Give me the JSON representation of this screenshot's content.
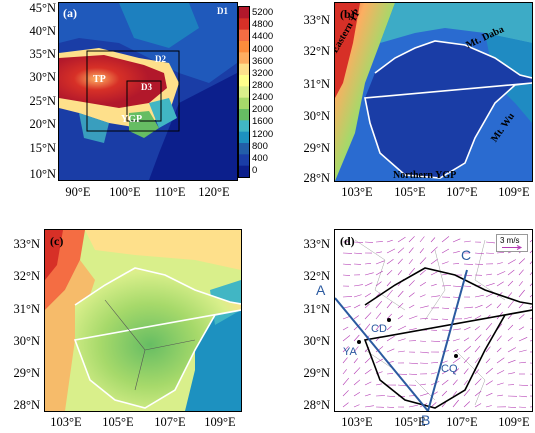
{
  "panel_a": {
    "label": "(a)",
    "domain_tag": "D1",
    "boxes": [
      "D2",
      "D3"
    ],
    "regions": [
      "TP",
      "YGP"
    ],
    "lat_ticks": [
      "45°N",
      "40°N",
      "35°N",
      "30°N",
      "25°N",
      "20°N",
      "15°N",
      "10°N"
    ],
    "lon_ticks": [
      "90°E",
      "100°E",
      "110°E",
      "120°E"
    ],
    "colorbar": {
      "ticks": [
        "5200",
        "4800",
        "4400",
        "4000",
        "3600",
        "3200",
        "2800",
        "2400",
        "2000",
        "1600",
        "1200",
        "800",
        "400",
        "0"
      ],
      "colors": [
        "#b2182b",
        "#d73027",
        "#f46d43",
        "#fd8d3c",
        "#fdae61",
        "#fee08b",
        "#ffff8c",
        "#d9ef8b",
        "#a6d96a",
        "#66bd63",
        "#41b6c4",
        "#1d91c0",
        "#225ea8",
        "#1a3da6",
        "#0c1f8c"
      ]
    }
  },
  "panel_b": {
    "label": "(b)",
    "annotations": [
      "Eastern TP",
      "Mt. Daba",
      "Mt. Wu",
      "Northern YGP"
    ],
    "lat_ticks": [
      "33°N",
      "32°N",
      "31°N",
      "30°N",
      "29°N",
      "28°N"
    ],
    "lon_ticks": [
      "103°E",
      "105°E",
      "107°E",
      "109°E"
    ]
  },
  "panel_c": {
    "label": "(c)",
    "lat_ticks": [
      "33°N",
      "32°N",
      "31°N",
      "30°N",
      "29°N",
      "28°N"
    ],
    "lon_ticks": [
      "103°E",
      "105°E",
      "107°E",
      "109°E"
    ]
  },
  "panel_d": {
    "label": "(d)",
    "wind_scale": "3 m/s",
    "section_points": [
      "A",
      "B",
      "C"
    ],
    "stations": [
      "CD",
      "YA",
      "CQ"
    ],
    "lat_ticks": [
      "33°N",
      "32°N",
      "31°N",
      "30°N",
      "29°N",
      "28°N"
    ],
    "lon_ticks": [
      "103°E",
      "105°E",
      "107°E",
      "109°E"
    ]
  }
}
